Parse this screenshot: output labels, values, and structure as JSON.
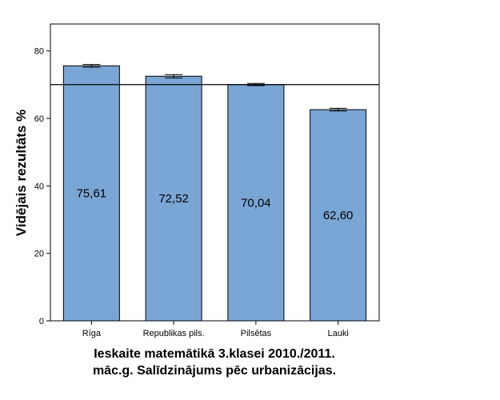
{
  "chart_data": {
    "type": "bar",
    "categories": [
      "Rīga",
      "Republikas pils.",
      "Pilsētas",
      "Lauki"
    ],
    "values": [
      75.61,
      72.52,
      70.04,
      62.6
    ],
    "value_labels": [
      "75,61",
      "72,52",
      "70,04",
      "62,60"
    ],
    "error_bars": [
      {
        "low": 75.2,
        "high": 76.0
      },
      {
        "low": 72.0,
        "high": 73.0
      },
      {
        "low": 69.7,
        "high": 70.4
      },
      {
        "low": 62.2,
        "high": 63.0
      }
    ],
    "reference_line": 70.04,
    "ylim": [
      0,
      88
    ],
    "yticks": [
      0,
      20,
      40,
      60,
      80
    ],
    "ytick_labels": [
      "0",
      "20",
      "40",
      "60",
      "80"
    ],
    "ylabel": "Vidējais rezultāts %",
    "xlabel": "",
    "title_lines": [
      "Ieskaite matemātikā 3.klasei 2010./2011.",
      "māc.g. Salīdzinājums pēc urbanizācijas."
    ],
    "grid": false,
    "bar_color": "#7aa6d6",
    "bar_edge_color": "#000000"
  }
}
